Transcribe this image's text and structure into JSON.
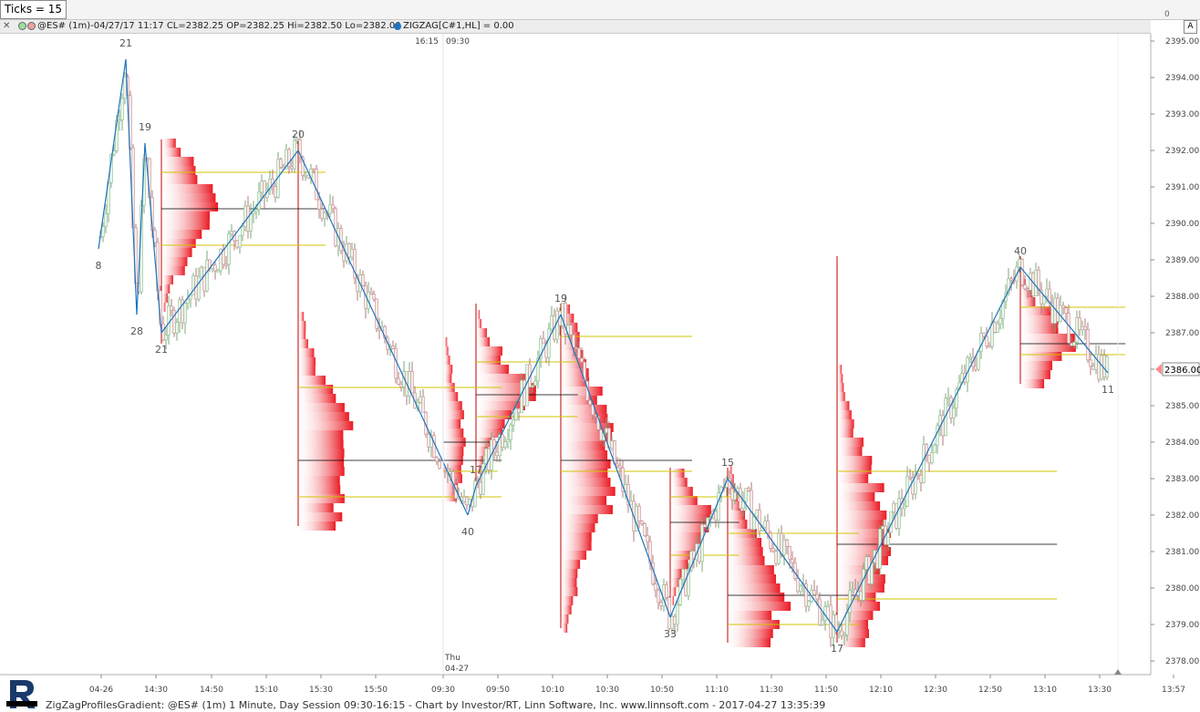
{
  "ticks_label": "Ticks = 15",
  "top_axis_zero": "0",
  "header": {
    "text": "@ES# (1m)-04/27/17 11:17 CL=2382.25 OP=2382.25 Hi=2382.50 Lo=2382.00",
    "zigzag": "ZIGZAG[C#1,HL] = 0.00",
    "a_button": "A"
  },
  "footer": "ZigZagProfilesGradient: @ES# (1m) 1 Minute, Day Session 09:30-16:15 - Chart by Investor/RT, Linn Software, Inc. www.linnsoft.com - 2017-04-27 13:35:39",
  "colors": {
    "zigzag": "#1e73be",
    "profile": "#e8000b",
    "value_area": "#d2c400",
    "poc": "#000000",
    "candle_up": "#8fbf8f",
    "candle_down": "#c79090",
    "price_marker": "#ff8c8c"
  },
  "chart_data": {
    "type": "line",
    "title": "",
    "y_range": [
      2377.6,
      2395.3
    ],
    "y_ticks": [
      "2378.00",
      "2379.00",
      "2380.00",
      "2381.00",
      "2382.00",
      "2383.00",
      "2384.00",
      "2385.00",
      "2386.00",
      "2387.00",
      "2388.00",
      "2389.00",
      "2390.00",
      "2391.00",
      "2392.00",
      "2393.00",
      "2394.00",
      "2395.00"
    ],
    "x_ticks": [
      "04-26",
      "14:30",
      "14:50",
      "15:10",
      "15:30",
      "15:50",
      "09:30",
      "09:50",
      "10:10",
      "10:30",
      "10:50",
      "11:10",
      "11:30",
      "11:50",
      "12:10",
      "12:30",
      "12:50",
      "13:10",
      "13:30",
      "13:57"
    ],
    "session_break_top": [
      "16:15",
      "09:30"
    ],
    "session_break_bottom": [
      "Thu",
      "04-27"
    ],
    "last_price": "2386.00",
    "zigzag_swings": [
      {
        "time": "04-26 13:59",
        "price": 2389.3,
        "label": "8"
      },
      {
        "time": "04-26 14:09",
        "price": 2394.5,
        "label": "21"
      },
      {
        "time": "04-26 14:13",
        "price": 2387.5,
        "label": "28"
      },
      {
        "time": "04-26 14:16",
        "price": 2392.2,
        "label": "19"
      },
      {
        "time": "04-26 14:22",
        "price": 2387.0,
        "label": "21"
      },
      {
        "time": "04-26 15:12",
        "price": 2392.0,
        "label": "20"
      },
      {
        "time": "04-26 16:14",
        "price": 2382.0,
        "label": "40"
      },
      {
        "time": "09:42",
        "price": 2382.8,
        "label": "17"
      },
      {
        "time": "10:13",
        "price": 2387.5,
        "label": "19"
      },
      {
        "time": "10:53",
        "price": 2379.2,
        "label": "33"
      },
      {
        "time": "11:14",
        "price": 2383.0,
        "label": "15"
      },
      {
        "time": "11:54",
        "price": 2378.8,
        "label": "17"
      },
      {
        "time": "13:01",
        "price": 2388.8,
        "label": "40"
      },
      {
        "time": "13:33",
        "price": 2385.9,
        "label": "11"
      }
    ],
    "profiles": [
      {
        "from": "04-26 14:22",
        "to": "04-26 15:12",
        "poc": 2390.4,
        "va_high": 2391.4,
        "va_low": 2389.4
      },
      {
        "from": "04-26 15:12",
        "to": "04-26 16:14",
        "poc": 2383.5,
        "va_high": 2385.5,
        "va_low": 2382.5
      },
      {
        "from": "09:30",
        "to": "09:42",
        "poc": 2384.0,
        "va_high": 2385.5,
        "va_low": 2383.2
      },
      {
        "from": "09:42",
        "to": "10:13",
        "poc": 2385.3,
        "va_high": 2386.2,
        "va_low": 2384.7
      },
      {
        "from": "10:13",
        "to": "10:53",
        "poc": 2383.5,
        "va_high": 2386.9,
        "va_low": 2383.2
      },
      {
        "from": "10:53",
        "to": "11:14",
        "poc": 2381.8,
        "va_high": 2382.5,
        "va_low": 2380.9
      },
      {
        "from": "11:14",
        "to": "11:54",
        "poc": 2379.8,
        "va_high": 2381.5,
        "va_low": 2379.0
      },
      {
        "from": "11:54",
        "to": "13:01",
        "poc": 2381.2,
        "va_high": 2383.2,
        "va_low": 2379.7
      },
      {
        "from": "13:01",
        "to": "13:33",
        "poc": 2386.7,
        "va_high": 2387.7,
        "va_low": 2386.4
      }
    ]
  }
}
